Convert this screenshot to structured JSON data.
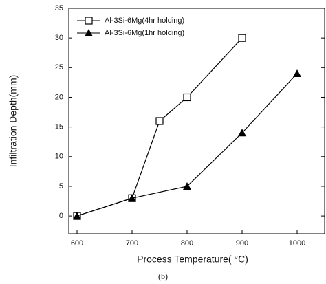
{
  "chart_data": {
    "type": "line",
    "caption": "(b)",
    "x_label": "Process Temperature( °C)",
    "y_label": "Infiltration Depth(mm)",
    "series": [
      {
        "name": "Al-3Si-6Mg(4hr holding)",
        "marker": "square-open",
        "color": "#000000",
        "x": [
          600,
          700,
          750,
          800,
          900
        ],
        "values": [
          0,
          3,
          16,
          20,
          30
        ]
      },
      {
        "name": "Al-3Si-6Mg(1hr holding)",
        "marker": "triangle-filled",
        "color": "#000000",
        "x": [
          600,
          700,
          800,
          900,
          1000
        ],
        "values": [
          0,
          3,
          5,
          14,
          24
        ]
      }
    ],
    "xlim": [
      585,
      1050
    ],
    "xticks": [
      600,
      700,
      800,
      900,
      1000
    ],
    "ylim": [
      -3,
      35
    ],
    "yticks": [
      0,
      5,
      10,
      15,
      20,
      25,
      30,
      35
    ],
    "legend": "upper left"
  }
}
